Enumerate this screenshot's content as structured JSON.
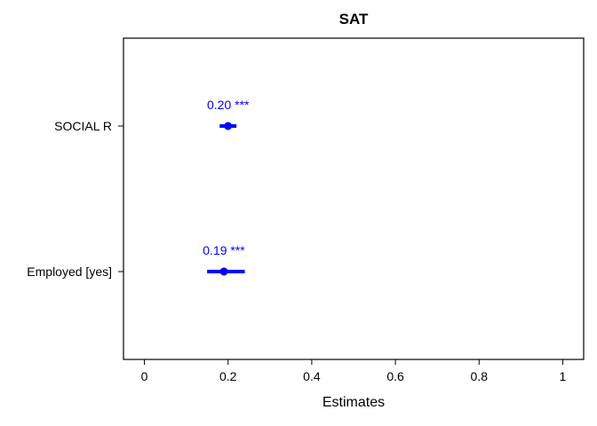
{
  "chart_data": {
    "type": "forest",
    "title": "SAT",
    "xlabel": "Estimates",
    "ylabel": "",
    "xlim": [
      -0.05,
      1.05
    ],
    "x_ticks": [
      0,
      0.2,
      0.4,
      0.6,
      0.8,
      1
    ],
    "x_tick_labels": [
      "0",
      "0.2",
      "0.4",
      "0.6",
      "0.8",
      "1"
    ],
    "grid": false,
    "color": "#0000ff",
    "terms": [
      {
        "label": "SOCIAL R",
        "estimate": 0.2,
        "ci_low": 0.18,
        "ci_high": 0.22,
        "annotation": "0.20 ***"
      },
      {
        "label": "Employed [yes]",
        "estimate": 0.19,
        "ci_low": 0.15,
        "ci_high": 0.24,
        "annotation": "0.19 ***"
      }
    ]
  }
}
